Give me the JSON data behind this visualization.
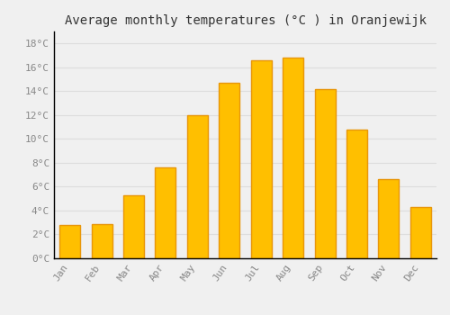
{
  "title": "Average monthly temperatures (°C ) in Oranjewijk",
  "months": [
    "Jan",
    "Feb",
    "Mar",
    "Apr",
    "May",
    "Jun",
    "Jul",
    "Aug",
    "Sep",
    "Oct",
    "Nov",
    "Dec"
  ],
  "temperatures": [
    2.8,
    2.9,
    5.3,
    7.6,
    12.0,
    14.7,
    16.6,
    16.8,
    14.2,
    10.8,
    6.6,
    4.3
  ],
  "bar_color": "#FFBF00",
  "bar_edge_color": "#E8960A",
  "background_color": "#F0F0F0",
  "plot_bg_color": "#F0F0F0",
  "grid_color": "#DDDDDD",
  "ylim": [
    0,
    19
  ],
  "ytick_step": 2,
  "title_fontsize": 10,
  "tick_fontsize": 8,
  "tick_color": "#888888",
  "spine_color": "#000000",
  "font_family": "monospace"
}
